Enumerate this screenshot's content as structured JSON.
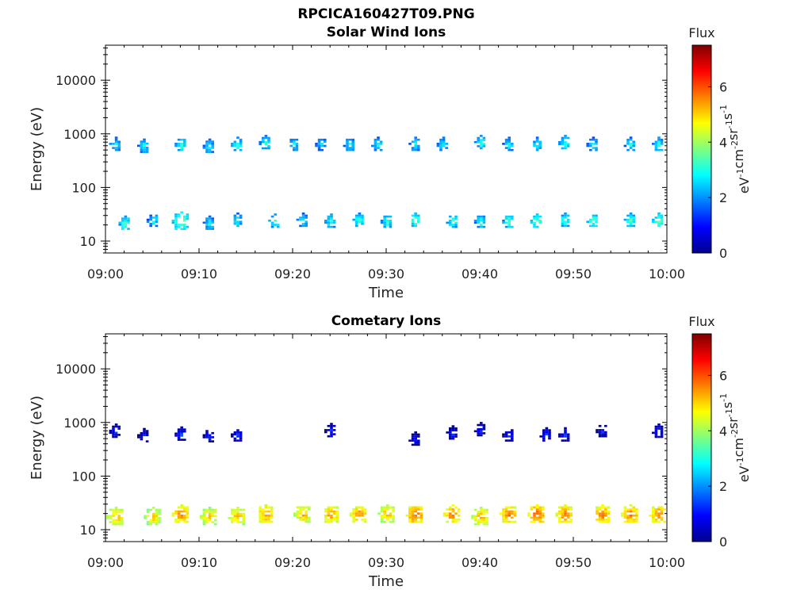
{
  "figure_title": "RPCICA160427T09.PNG",
  "chart_data": [
    {
      "type": "heatmap",
      "title": "Solar Wind Ions",
      "xlabel": "Time",
      "ylabel": "Energy (eV)",
      "xlim": [
        "09:00",
        "10:00"
      ],
      "x_ticks": [
        "09:00",
        "09:10",
        "09:20",
        "09:30",
        "09:40",
        "09:50",
        "10:00"
      ],
      "yscale": "log",
      "ylim": [
        6,
        45000
      ],
      "y_ticks": [
        10,
        100,
        1000,
        10000
      ],
      "y_tick_labels": [
        "10",
        "100",
        "1000",
        "10000"
      ],
      "colorbar": {
        "label": "Flux",
        "unit": "eV-1cm-2sr-1s-1",
        "range": [
          0,
          7.5
        ],
        "ticks": [
          0,
          2,
          4,
          6
        ],
        "colormap": "jet"
      },
      "bursts": [
        {
          "time": "09:01",
          "energy_ev": 650,
          "flux": 3.0
        },
        {
          "time": "09:04",
          "energy_ev": 600,
          "flux": 3.0
        },
        {
          "time": "09:08",
          "energy_ev": 650,
          "flux": 3.4
        },
        {
          "time": "09:11",
          "energy_ev": 600,
          "flux": 3.0
        },
        {
          "time": "09:14",
          "energy_ev": 650,
          "flux": 3.2
        },
        {
          "time": "09:17",
          "energy_ev": 700,
          "flux": 3.2
        },
        {
          "time": "09:20",
          "energy_ev": 650,
          "flux": 3.0
        },
        {
          "time": "09:23",
          "energy_ev": 650,
          "flux": 2.8
        },
        {
          "time": "09:26",
          "energy_ev": 650,
          "flux": 3.0
        },
        {
          "time": "09:29",
          "energy_ev": 650,
          "flux": 3.0
        },
        {
          "time": "09:33",
          "energy_ev": 650,
          "flux": 3.0
        },
        {
          "time": "09:36",
          "energy_ev": 650,
          "flux": 3.0
        },
        {
          "time": "09:40",
          "energy_ev": 700,
          "flux": 3.2
        },
        {
          "time": "09:43",
          "energy_ev": 650,
          "flux": 3.0
        },
        {
          "time": "09:46",
          "energy_ev": 650,
          "flux": 3.0
        },
        {
          "time": "09:49",
          "energy_ev": 700,
          "flux": 3.2
        },
        {
          "time": "09:52",
          "energy_ev": 650,
          "flux": 3.0
        },
        {
          "time": "09:56",
          "energy_ev": 650,
          "flux": 3.0
        },
        {
          "time": "09:59",
          "energy_ev": 650,
          "flux": 3.2
        },
        {
          "time": "09:02",
          "energy_ev": 22,
          "flux": 3.5
        },
        {
          "time": "09:05",
          "energy_ev": 25,
          "flux": 3.0
        },
        {
          "time": "09:08",
          "energy_ev": 24,
          "flux": 3.8
        },
        {
          "time": "09:11",
          "energy_ev": 22,
          "flux": 3.0
        },
        {
          "time": "09:14",
          "energy_ev": 25,
          "flux": 3.0
        },
        {
          "time": "09:18",
          "energy_ev": 24,
          "flux": 3.3
        },
        {
          "time": "09:21",
          "energy_ev": 25,
          "flux": 3.0
        },
        {
          "time": "09:24",
          "energy_ev": 24,
          "flux": 3.2
        },
        {
          "time": "09:27",
          "energy_ev": 25,
          "flux": 3.4
        },
        {
          "time": "09:30",
          "energy_ev": 24,
          "flux": 3.3
        },
        {
          "time": "09:33",
          "energy_ev": 25,
          "flux": 3.6
        },
        {
          "time": "09:37",
          "energy_ev": 24,
          "flux": 3.3
        },
        {
          "time": "09:40",
          "energy_ev": 24,
          "flux": 3.2
        },
        {
          "time": "09:43",
          "energy_ev": 24,
          "flux": 3.4
        },
        {
          "time": "09:46",
          "energy_ev": 24,
          "flux": 3.6
        },
        {
          "time": "09:49",
          "energy_ev": 25,
          "flux": 3.4
        },
        {
          "time": "09:52",
          "energy_ev": 25,
          "flux": 3.5
        },
        {
          "time": "09:56",
          "energy_ev": 25,
          "flux": 3.5
        },
        {
          "time": "09:59",
          "energy_ev": 25,
          "flux": 3.6
        }
      ]
    },
    {
      "type": "heatmap",
      "title": "Cometary Ions",
      "xlabel": "Time",
      "ylabel": "Energy (eV)",
      "xlim": [
        "09:00",
        "10:00"
      ],
      "x_ticks": [
        "09:00",
        "09:10",
        "09:20",
        "09:30",
        "09:40",
        "09:50",
        "10:00"
      ],
      "yscale": "log",
      "ylim": [
        6,
        45000
      ],
      "y_ticks": [
        10,
        100,
        1000,
        10000
      ],
      "y_tick_labels": [
        "10",
        "100",
        "1000",
        "10000"
      ],
      "colorbar": {
        "label": "Flux",
        "unit": "eV-1cm-2sr-1s-1",
        "range": [
          0,
          7.5
        ],
        "ticks": [
          0,
          2,
          4,
          6
        ],
        "colormap": "jet"
      },
      "bursts": [
        {
          "time": "09:01",
          "energy_ev": 18,
          "flux": 5.4
        },
        {
          "time": "09:05",
          "energy_ev": 18,
          "flux": 5.2
        },
        {
          "time": "09:08",
          "energy_ev": 20,
          "flux": 5.8
        },
        {
          "time": "09:11",
          "energy_ev": 18,
          "flux": 5.3
        },
        {
          "time": "09:14",
          "energy_ev": 18,
          "flux": 5.4
        },
        {
          "time": "09:17",
          "energy_ev": 20,
          "flux": 5.6
        },
        {
          "time": "09:21",
          "energy_ev": 20,
          "flux": 5.4
        },
        {
          "time": "09:24",
          "energy_ev": 20,
          "flux": 5.6
        },
        {
          "time": "09:27",
          "energy_ev": 20,
          "flux": 5.6
        },
        {
          "time": "09:30",
          "energy_ev": 20,
          "flux": 5.4
        },
        {
          "time": "09:33",
          "energy_ev": 20,
          "flux": 6.0
        },
        {
          "time": "09:37",
          "energy_ev": 20,
          "flux": 5.8
        },
        {
          "time": "09:40",
          "energy_ev": 18,
          "flux": 5.4
        },
        {
          "time": "09:43",
          "energy_ev": 20,
          "flux": 5.8
        },
        {
          "time": "09:46",
          "energy_ev": 20,
          "flux": 6.0
        },
        {
          "time": "09:49",
          "energy_ev": 20,
          "flux": 5.8
        },
        {
          "time": "09:53",
          "energy_ev": 20,
          "flux": 5.8
        },
        {
          "time": "09:56",
          "energy_ev": 20,
          "flux": 5.8
        },
        {
          "time": "09:59",
          "energy_ev": 20,
          "flux": 5.8
        },
        {
          "time": "09:01",
          "energy_ev": 700,
          "flux": 1.4
        },
        {
          "time": "09:04",
          "energy_ev": 580,
          "flux": 1.4
        },
        {
          "time": "09:08",
          "energy_ev": 620,
          "flux": 1.5
        },
        {
          "time": "09:11",
          "energy_ev": 580,
          "flux": 1.4
        },
        {
          "time": "09:14",
          "energy_ev": 600,
          "flux": 1.4
        },
        {
          "time": "09:24",
          "energy_ev": 720,
          "flux": 1.3
        },
        {
          "time": "09:33",
          "energy_ev": 500,
          "flux": 1.3
        },
        {
          "time": "09:37",
          "energy_ev": 650,
          "flux": 1.3
        },
        {
          "time": "09:40",
          "energy_ev": 750,
          "flux": 1.3
        },
        {
          "time": "09:43",
          "energy_ev": 600,
          "flux": 1.4
        },
        {
          "time": "09:47",
          "energy_ev": 600,
          "flux": 1.4
        },
        {
          "time": "09:49",
          "energy_ev": 600,
          "flux": 1.3
        },
        {
          "time": "09:53",
          "energy_ev": 720,
          "flux": 1.3
        },
        {
          "time": "09:59",
          "energy_ev": 700,
          "flux": 1.4
        }
      ]
    }
  ]
}
